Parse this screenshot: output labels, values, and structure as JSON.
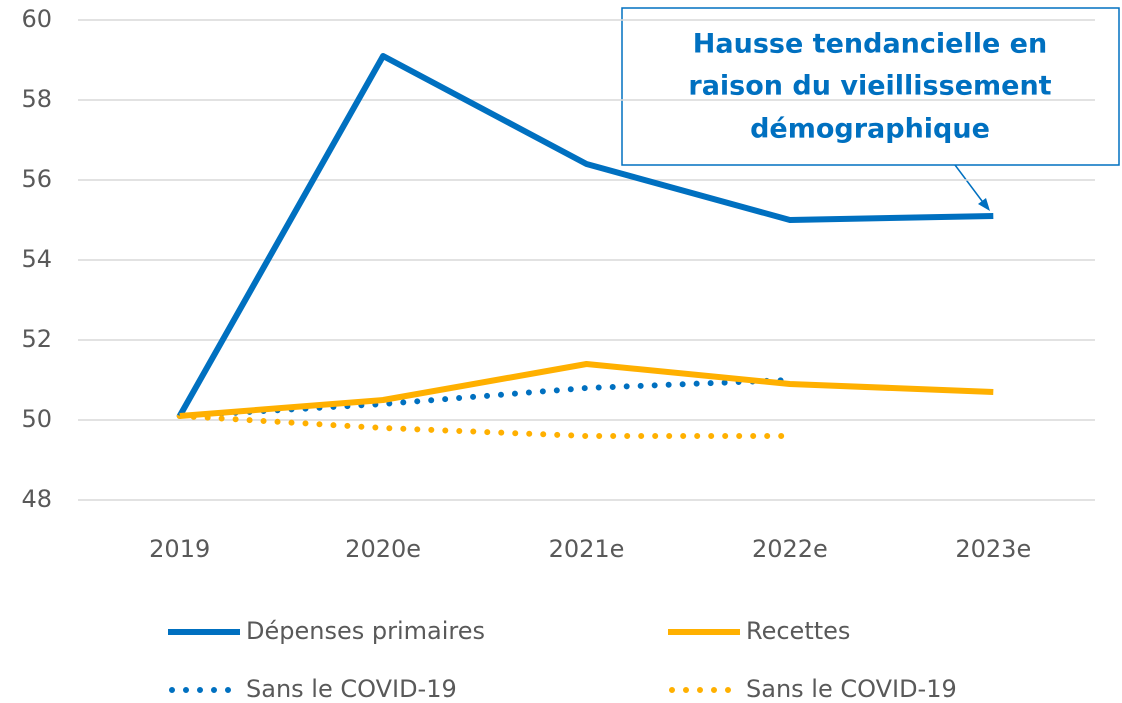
{
  "chart_data": {
    "type": "line",
    "categories": [
      "2019",
      "2020e",
      "2021e",
      "2022e",
      "2023e"
    ],
    "series": [
      {
        "name": "Dépenses primaires",
        "color": "#0070c0",
        "style": "solid",
        "values": [
          50.1,
          59.1,
          56.4,
          55.0,
          55.1
        ]
      },
      {
        "name": "Recettes",
        "color": "#ffb000",
        "style": "solid",
        "values": [
          50.1,
          50.5,
          51.4,
          50.9,
          50.7
        ]
      },
      {
        "name": "Sans le COVID-19",
        "color": "#0070c0",
        "style": "dotted",
        "values": [
          50.1,
          50.4,
          50.8,
          51.0,
          null
        ]
      },
      {
        "name": "Sans le COVID-19",
        "color": "#ffb000",
        "style": "dotted",
        "values": [
          50.1,
          49.8,
          49.6,
          49.6,
          null
        ]
      }
    ],
    "ylim": [
      48,
      60
    ],
    "yticks": [
      48,
      50,
      52,
      54,
      56,
      58,
      60
    ],
    "grid": true,
    "annotation": [
      "Hausse tendancielle en",
      "raison du vieillissement",
      "démographique"
    ]
  }
}
